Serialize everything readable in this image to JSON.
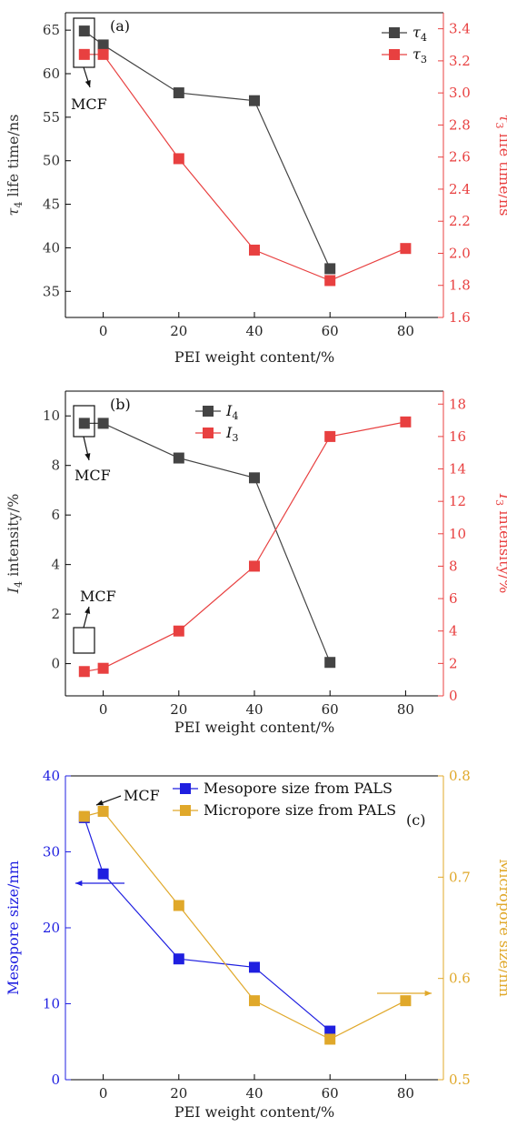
{
  "chart_data": [
    {
      "type": "line",
      "panel": "(a)",
      "xlabel": "PEI weight content/%",
      "ylabel_left": "τ4 life time/ns",
      "ylabel_right": "τ3 life time/ns",
      "xlim": [
        -10,
        90
      ],
      "x_ticks": [
        0,
        20,
        40,
        60,
        80
      ],
      "ylim_left": [
        32,
        67
      ],
      "yticks_left": [
        35,
        40,
        45,
        50,
        55,
        60,
        65
      ],
      "ylim_right": [
        1.6,
        3.5
      ],
      "yticks_right": [
        1.6,
        1.8,
        2.0,
        2.2,
        2.4,
        2.6,
        2.8,
        3.0,
        3.2,
        3.4
      ],
      "legend_position": "top-right",
      "annotation": "MCF",
      "series": [
        {
          "name": "τ4",
          "axis": "left",
          "color": "#444444",
          "x": [
            -5,
            0,
            20,
            40,
            60
          ],
          "y": [
            64.9,
            63.3,
            57.8,
            56.9,
            37.6
          ]
        },
        {
          "name": "τ3",
          "axis": "right",
          "color": "#e84040",
          "x": [
            -5,
            0,
            20,
            40,
            60,
            80
          ],
          "y": [
            3.24,
            3.24,
            2.59,
            2.02,
            1.83,
            2.03
          ]
        }
      ]
    },
    {
      "type": "line",
      "panel": "(b)",
      "xlabel": "PEI weight content/%",
      "ylabel_left": "I4 intensity/%",
      "ylabel_right": "I3 intensity/%",
      "xlim": [
        -10,
        90
      ],
      "x_ticks": [
        0,
        20,
        40,
        60,
        80
      ],
      "ylim_left": [
        -1.3,
        11.0
      ],
      "yticks_left": [
        0,
        2,
        4,
        6,
        8,
        10
      ],
      "ylim_right": [
        0,
        18.8
      ],
      "yticks_right": [
        0,
        2,
        4,
        6,
        8,
        10,
        12,
        14,
        16,
        18
      ],
      "legend_position": "top-center",
      "annotations": [
        "MCF",
        "MCF"
      ],
      "series": [
        {
          "name": "I4",
          "axis": "left",
          "color": "#444444",
          "x": [
            -5,
            0,
            20,
            40,
            60
          ],
          "y": [
            9.7,
            9.7,
            8.3,
            7.5,
            0.05
          ]
        },
        {
          "name": "I3",
          "axis": "right",
          "color": "#e84040",
          "x": [
            -5,
            0,
            20,
            40,
            60,
            80
          ],
          "y": [
            1.5,
            1.7,
            4.0,
            8.0,
            16.0,
            16.9
          ]
        }
      ]
    },
    {
      "type": "line",
      "panel": "(c)",
      "xlabel": "PEI weight content/%",
      "ylabel_left": "Mesopore size/nm",
      "ylabel_right": "Micropore size/nm",
      "xlim": [
        -10,
        90
      ],
      "x_ticks": [
        0,
        20,
        40,
        60,
        80
      ],
      "ylim_left": [
        0,
        40
      ],
      "yticks_left": [
        0,
        10,
        20,
        30,
        40
      ],
      "ylim_right": [
        0.5,
        0.8
      ],
      "yticks_right": [
        0.5,
        0.6,
        0.7,
        0.8
      ],
      "legend_position": "top-right",
      "annotation": "MCF",
      "series": [
        {
          "name": "Mesopore size from PALS",
          "axis": "left",
          "color": "#1f1fe0",
          "x": [
            -5,
            0,
            20,
            40,
            60
          ],
          "y": [
            34.5,
            27.1,
            15.9,
            14.8,
            6.4
          ]
        },
        {
          "name": "Micropore size from PALS",
          "axis": "right",
          "color": "#e0a82a",
          "x": [
            -5,
            0,
            20,
            40,
            60,
            80
          ],
          "y": [
            0.76,
            0.765,
            0.672,
            0.578,
            0.54,
            0.578
          ]
        }
      ]
    }
  ]
}
